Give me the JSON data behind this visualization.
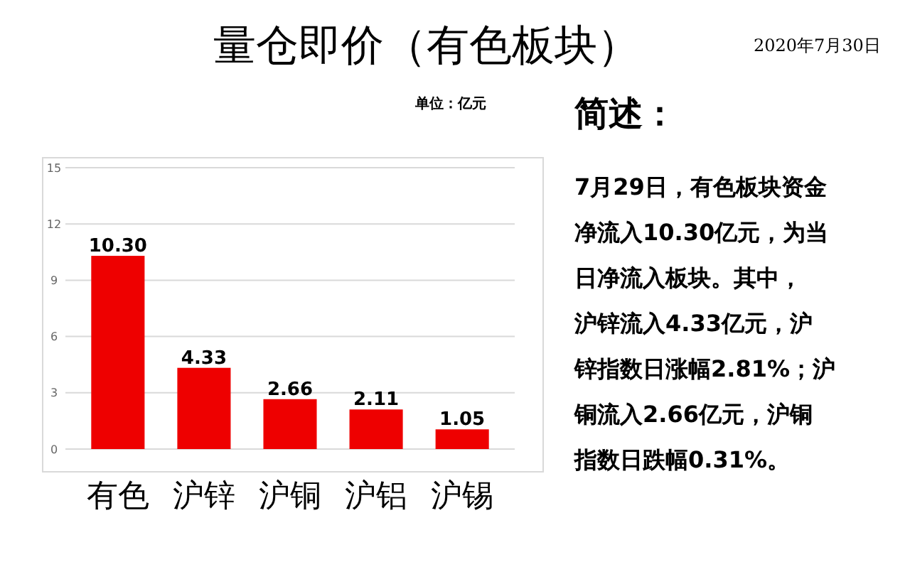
{
  "chart_data": {
    "type": "bar",
    "title": "量仓即价（有色板块）",
    "categories": [
      "有色",
      "沪锌",
      "沪铜",
      "沪铝",
      "沪锡"
    ],
    "values": [
      10.3,
      4.33,
      2.66,
      2.11,
      1.05
    ],
    "value_labels": [
      "10.30",
      "4.33",
      "2.66",
      "2.11",
      "1.05"
    ],
    "color": "#ee0000",
    "ylim": [
      0,
      15
    ],
    "yticks": [
      0,
      3,
      6,
      9,
      12,
      15
    ],
    "grid": "y",
    "annotations": [
      "2020年7月30日",
      "单位：亿元",
      "简述：",
      "7月29日，有色板块资金",
      "净流入10.30亿元，为当",
      "日净流入板块。其中，",
      "沪锌流入4.33亿元，沪",
      "锌指数日涨幅2.81%；沪",
      "铜流入2.66亿元，沪铜",
      "指数日跌幅0.31%。"
    ]
  }
}
